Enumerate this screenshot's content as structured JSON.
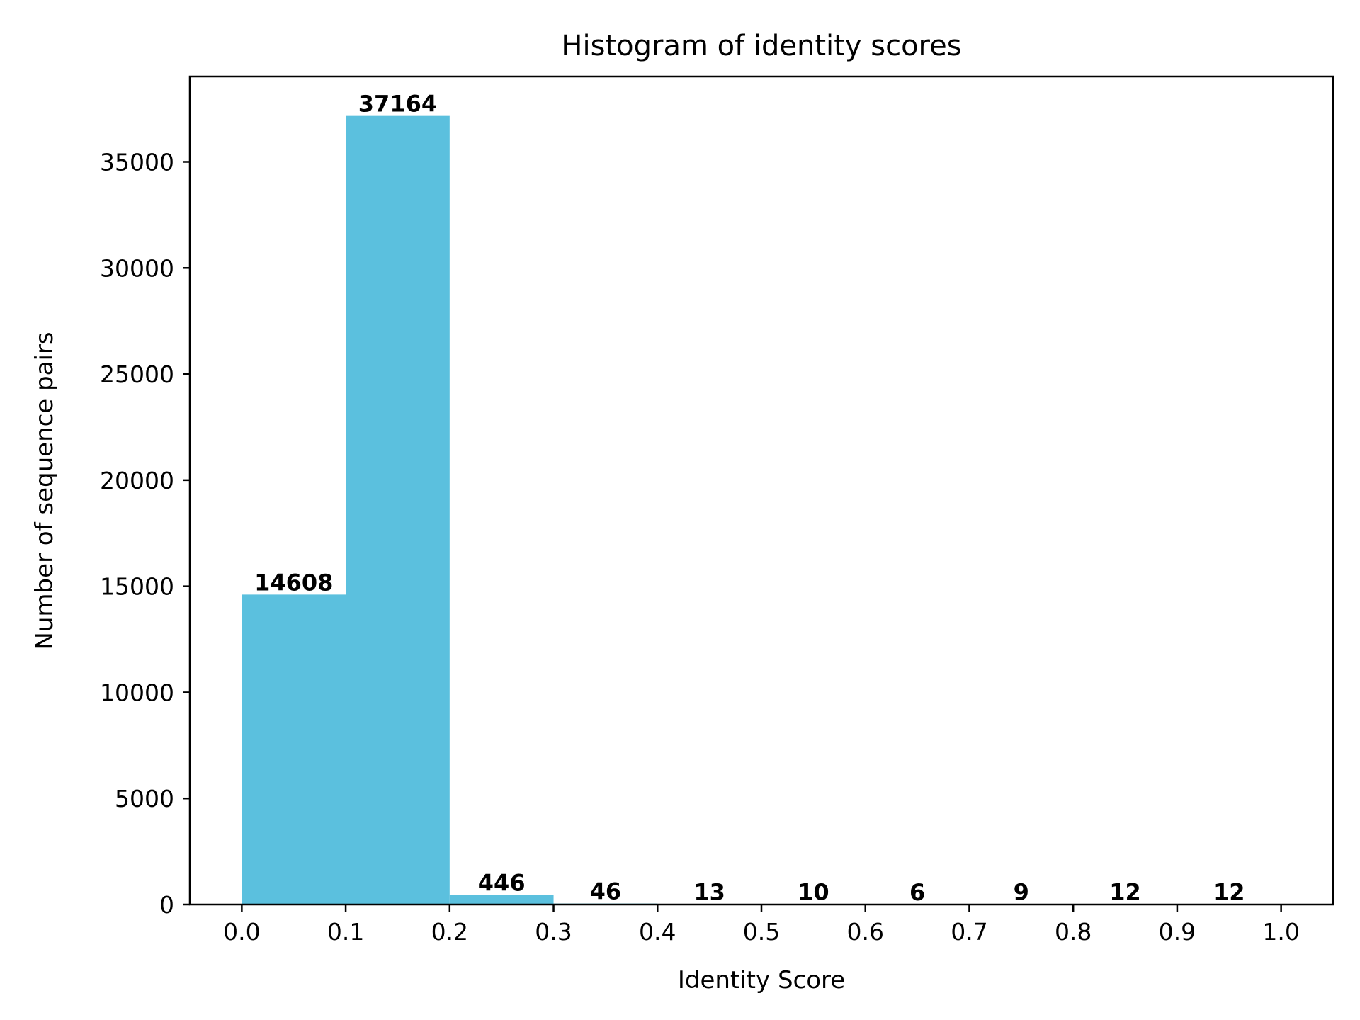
{
  "chart_data": {
    "type": "bar",
    "title": "Histogram of identity scores",
    "xlabel": "Identity Score",
    "ylabel": "Number of sequence pairs",
    "bin_edges": [
      0.0,
      0.1,
      0.2,
      0.3,
      0.4,
      0.5,
      0.6,
      0.7,
      0.8,
      0.9,
      1.0
    ],
    "values": [
      14608,
      37164,
      446,
      46,
      13,
      10,
      6,
      9,
      12,
      12
    ],
    "data_labels": [
      "14608",
      "37164",
      "446",
      "46",
      "13",
      "10",
      "6",
      "9",
      "12",
      "12"
    ],
    "x_ticks": [
      0.0,
      0.1,
      0.2,
      0.3,
      0.4,
      0.5,
      0.6,
      0.7,
      0.8,
      0.9,
      1.0
    ],
    "x_tick_labels": [
      "0.0",
      "0.1",
      "0.2",
      "0.3",
      "0.4",
      "0.5",
      "0.6",
      "0.7",
      "0.8",
      "0.9",
      "1.0"
    ],
    "y_ticks": [
      0,
      5000,
      10000,
      15000,
      20000,
      25000,
      30000,
      35000
    ],
    "y_tick_labels": [
      "0",
      "5000",
      "10000",
      "15000",
      "20000",
      "25000",
      "30000",
      "35000"
    ],
    "xlim": [
      -0.05,
      1.05
    ],
    "ylim": [
      0,
      39022
    ],
    "grid": false,
    "bar_color": "#5bc0de"
  }
}
